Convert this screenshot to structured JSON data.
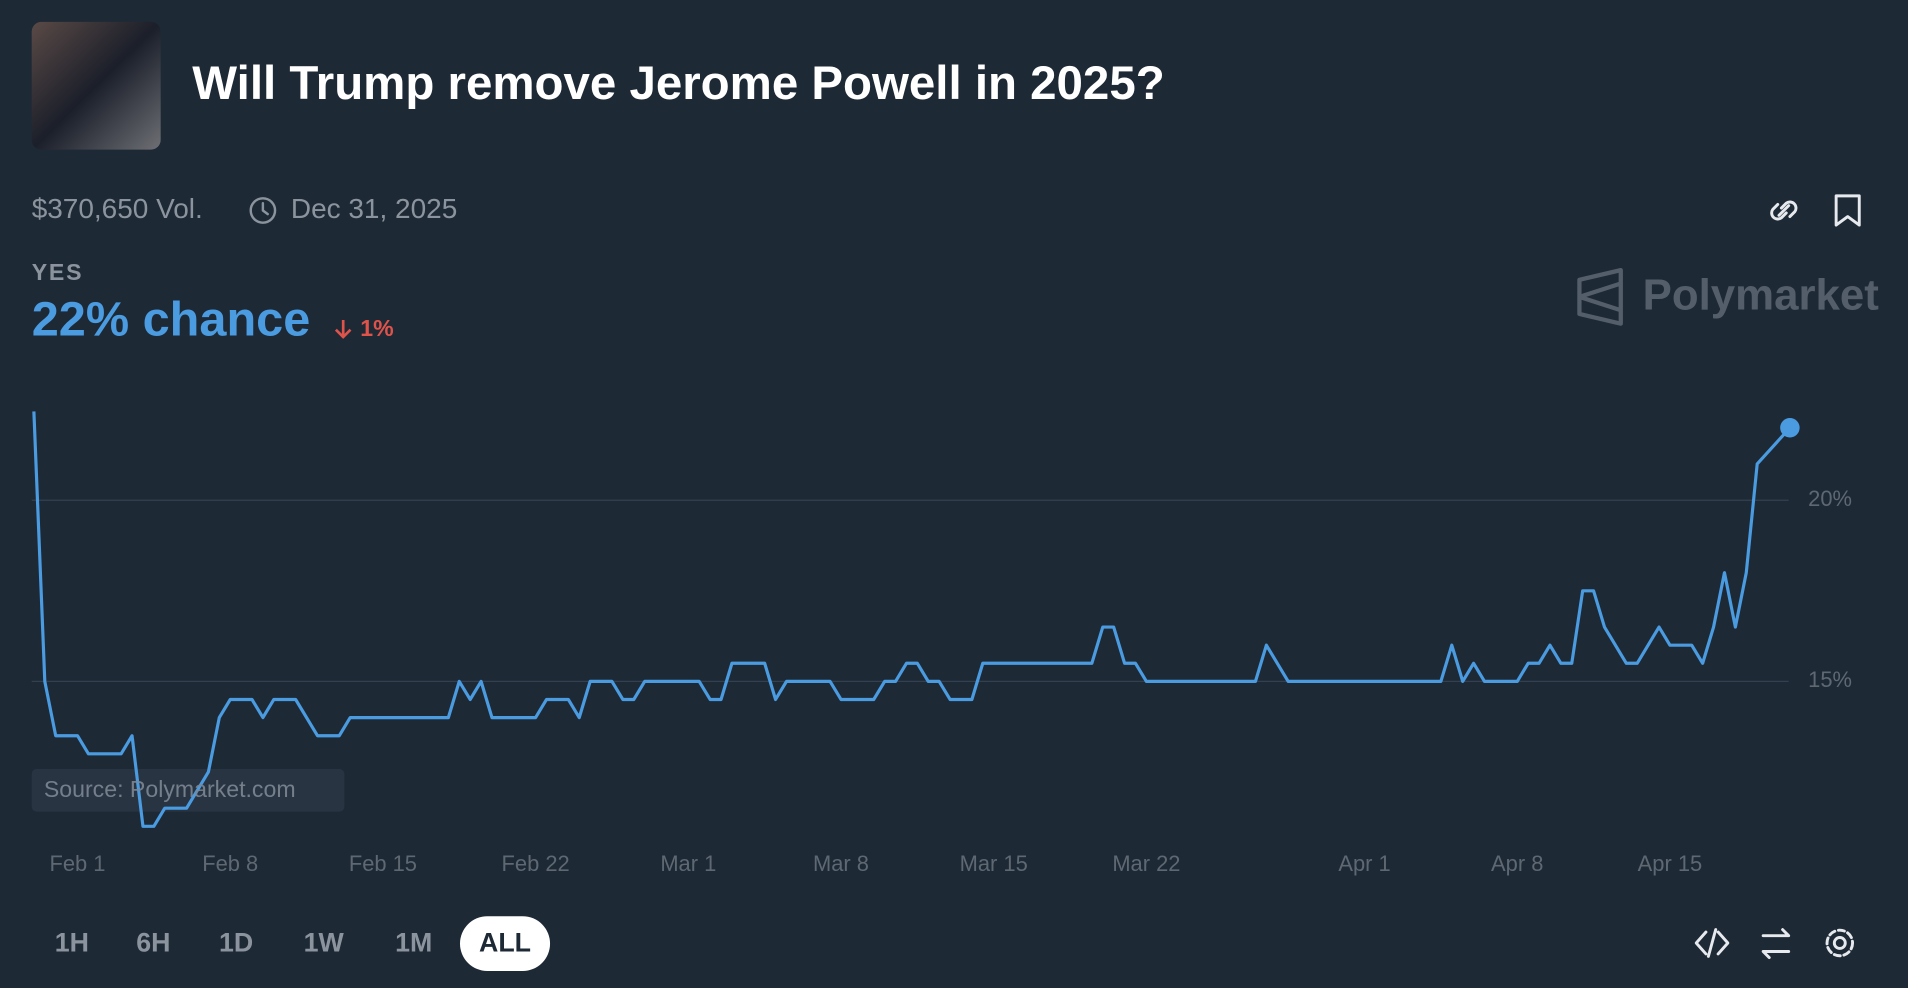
{
  "header": {
    "title": "Will Trump remove Jerome Powell in 2025?"
  },
  "meta": {
    "volume": "$370,650 Vol.",
    "end_date": "Dec 31, 2025"
  },
  "outcome": {
    "label": "YES",
    "chance": "22% chance",
    "change": "1%"
  },
  "brand": "Polymarket",
  "chart_data": {
    "type": "line",
    "source": "Source: Polymarket.com",
    "xlim": [
      -2.1,
      78.5
    ],
    "xticks": [
      {
        "value": 0,
        "label": "Feb 1"
      },
      {
        "value": 7,
        "label": "Feb 8"
      },
      {
        "value": 14,
        "label": "Feb 15"
      },
      {
        "value": 21,
        "label": "Feb 22"
      },
      {
        "value": 28,
        "label": "Mar 1"
      },
      {
        "value": 35,
        "label": "Mar 8"
      },
      {
        "value": 42,
        "label": "Mar 15"
      },
      {
        "value": 49,
        "label": "Mar 22"
      },
      {
        "value": 59,
        "label": "Apr 1"
      },
      {
        "value": 66,
        "label": "Apr 8"
      },
      {
        "value": 73,
        "label": "Apr 15"
      }
    ],
    "ylim": [
      10.5,
      24
    ],
    "yticks": [
      {
        "value": 15,
        "label": "15%"
      },
      {
        "value": 20,
        "label": "20%"
      }
    ],
    "grid": true,
    "series": [
      {
        "name": "Yes",
        "color": "#4a9be0",
        "x": [
          -2,
          -1.5,
          -1,
          0,
          0.5,
          2,
          2.5,
          3,
          3.5,
          4,
          5,
          6,
          6.5,
          7,
          8,
          8.5,
          9,
          10,
          11,
          12,
          12.5,
          17,
          17.5,
          18,
          18.5,
          19,
          21,
          21.5,
          22.5,
          23,
          23.5,
          24.5,
          25,
          25.5,
          26,
          28.5,
          29,
          29.5,
          30,
          31.5,
          32,
          32.5,
          34.5,
          35,
          36.5,
          37,
          37.5,
          38,
          38.5,
          39,
          39.5,
          40,
          41,
          41.5,
          46.5,
          47,
          47.5,
          48,
          48.5,
          49,
          54,
          54.5,
          55.5,
          62.5,
          63,
          63.5,
          64,
          64.5,
          66,
          66.5,
          67,
          67.5,
          68,
          68.5,
          69,
          69.5,
          70,
          71,
          71.5,
          72.5,
          73,
          74,
          74.5,
          75,
          75.5,
          76,
          76.5,
          77,
          78.5
        ],
        "values": [
          22.45,
          15,
          13.5,
          13.5,
          13,
          13,
          13.5,
          11,
          11,
          11.5,
          11.5,
          12.5,
          14,
          14.5,
          14.5,
          14,
          14.5,
          14.5,
          13.5,
          13.5,
          14,
          14,
          15,
          14.5,
          15,
          14,
          14,
          14.5,
          14.5,
          14,
          15,
          15,
          14.5,
          14.5,
          15,
          15,
          14.5,
          14.5,
          15.5,
          15.5,
          14.5,
          15,
          15,
          14.5,
          14.5,
          15,
          15,
          15.5,
          15.5,
          15,
          15,
          14.5,
          14.5,
          15.5,
          15.5,
          16.5,
          16.5,
          15.5,
          15.5,
          15,
          15,
          16,
          15,
          15,
          16,
          15,
          15.5,
          15,
          15,
          15.5,
          15.5,
          16,
          15.5,
          15.5,
          17.5,
          17.5,
          16.5,
          15.5,
          15.5,
          16.5,
          16,
          16,
          15.5,
          16.5,
          18,
          16.5,
          18,
          21,
          22
        ]
      }
    ]
  },
  "controls": {
    "ranges": [
      "1H",
      "6H",
      "1D",
      "1W",
      "1M",
      "ALL"
    ],
    "active": "ALL"
  }
}
